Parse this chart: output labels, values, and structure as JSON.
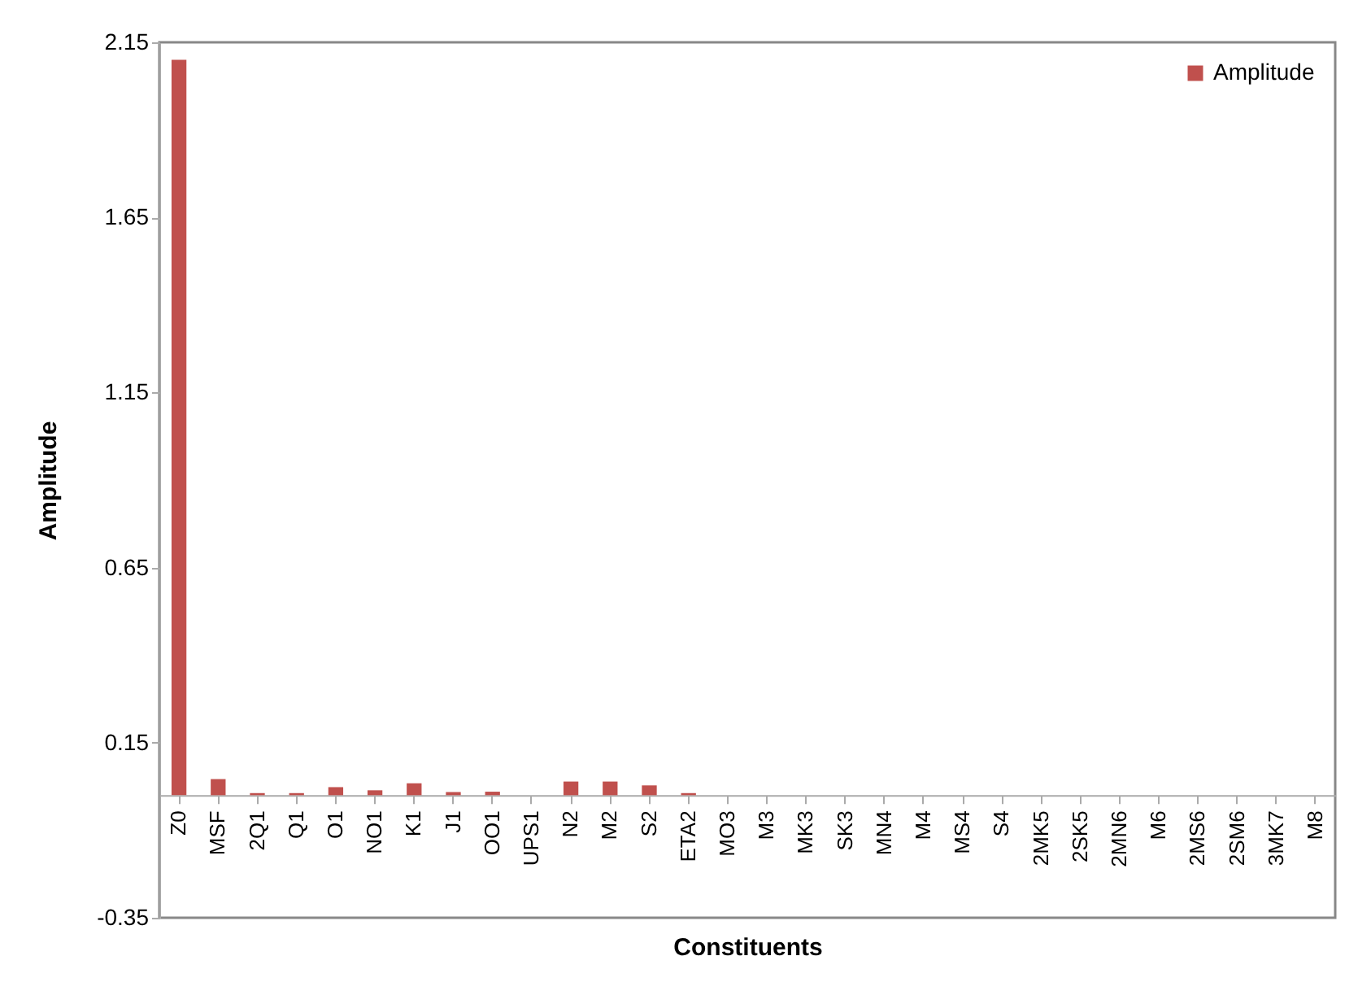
{
  "chart_data": {
    "type": "bar",
    "xlabel": "Constituents",
    "ylabel": "Amplitude",
    "categories": [
      "Z0",
      "MSF",
      "2Q1",
      "Q1",
      "O1",
      "NO1",
      "K1",
      "J1",
      "OO1",
      "UPS1",
      "N2",
      "M2",
      "S2",
      "ETA2",
      "MO3",
      "M3",
      "MK3",
      "SK3",
      "MN4",
      "M4",
      "MS4",
      "S4",
      "2MK5",
      "2SK5",
      "2MN6",
      "M6",
      "2MS6",
      "2SM6",
      "3MK7",
      "M8"
    ],
    "series": [
      {
        "name": "Amplitude",
        "color": "#c0504d",
        "values": [
          2.1,
          0.046,
          0.006,
          0.006,
          0.023,
          0.014,
          0.034,
          0.009,
          0.01,
          0,
          0.039,
          0.039,
          0.028,
          0.006,
          0,
          0,
          0,
          0,
          0,
          0,
          0,
          0,
          0,
          0,
          0,
          0,
          0,
          0,
          0,
          0
        ]
      }
    ],
    "ylim": [
      -0.35,
      2.15
    ],
    "yticks": [
      -0.35,
      0.15,
      0.65,
      1.15,
      1.65,
      2.15
    ],
    "grid": false,
    "legend": "top right"
  }
}
